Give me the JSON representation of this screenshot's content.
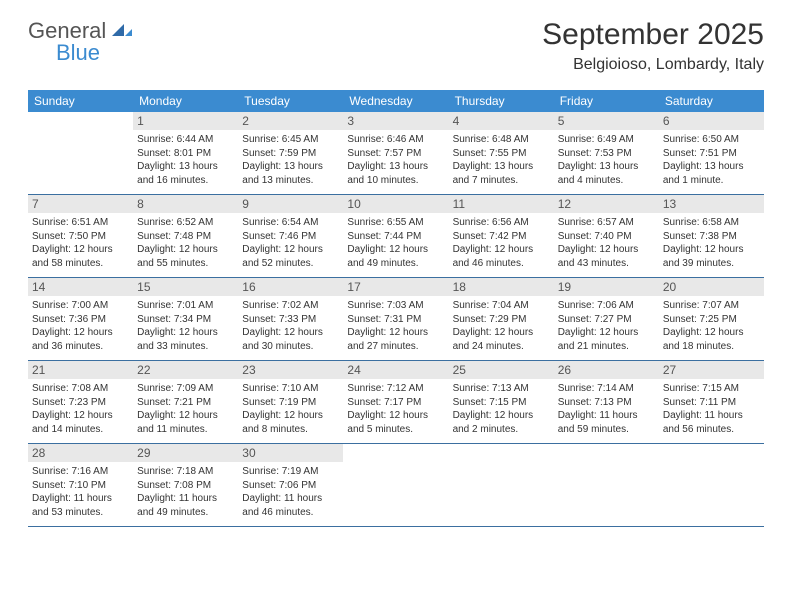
{
  "logo": {
    "part1": "General",
    "part2": "Blue"
  },
  "title": "September 2025",
  "location": "Belgioioso, Lombardy, Italy",
  "colors": {
    "header_bg": "#3b8bd0",
    "daynum_bg": "#e8e8e8",
    "week_border": "#3b6fa0",
    "logo_accent": "#3b8bd0",
    "text": "#333333"
  },
  "weekdays": [
    "Sunday",
    "Monday",
    "Tuesday",
    "Wednesday",
    "Thursday",
    "Friday",
    "Saturday"
  ],
  "weeks": [
    [
      null,
      {
        "num": "1",
        "sunrise": "Sunrise: 6:44 AM",
        "sunset": "Sunset: 8:01 PM",
        "day1": "Daylight: 13 hours",
        "day2": "and 16 minutes."
      },
      {
        "num": "2",
        "sunrise": "Sunrise: 6:45 AM",
        "sunset": "Sunset: 7:59 PM",
        "day1": "Daylight: 13 hours",
        "day2": "and 13 minutes."
      },
      {
        "num": "3",
        "sunrise": "Sunrise: 6:46 AM",
        "sunset": "Sunset: 7:57 PM",
        "day1": "Daylight: 13 hours",
        "day2": "and 10 minutes."
      },
      {
        "num": "4",
        "sunrise": "Sunrise: 6:48 AM",
        "sunset": "Sunset: 7:55 PM",
        "day1": "Daylight: 13 hours",
        "day2": "and 7 minutes."
      },
      {
        "num": "5",
        "sunrise": "Sunrise: 6:49 AM",
        "sunset": "Sunset: 7:53 PM",
        "day1": "Daylight: 13 hours",
        "day2": "and 4 minutes."
      },
      {
        "num": "6",
        "sunrise": "Sunrise: 6:50 AM",
        "sunset": "Sunset: 7:51 PM",
        "day1": "Daylight: 13 hours",
        "day2": "and 1 minute."
      }
    ],
    [
      {
        "num": "7",
        "sunrise": "Sunrise: 6:51 AM",
        "sunset": "Sunset: 7:50 PM",
        "day1": "Daylight: 12 hours",
        "day2": "and 58 minutes."
      },
      {
        "num": "8",
        "sunrise": "Sunrise: 6:52 AM",
        "sunset": "Sunset: 7:48 PM",
        "day1": "Daylight: 12 hours",
        "day2": "and 55 minutes."
      },
      {
        "num": "9",
        "sunrise": "Sunrise: 6:54 AM",
        "sunset": "Sunset: 7:46 PM",
        "day1": "Daylight: 12 hours",
        "day2": "and 52 minutes."
      },
      {
        "num": "10",
        "sunrise": "Sunrise: 6:55 AM",
        "sunset": "Sunset: 7:44 PM",
        "day1": "Daylight: 12 hours",
        "day2": "and 49 minutes."
      },
      {
        "num": "11",
        "sunrise": "Sunrise: 6:56 AM",
        "sunset": "Sunset: 7:42 PM",
        "day1": "Daylight: 12 hours",
        "day2": "and 46 minutes."
      },
      {
        "num": "12",
        "sunrise": "Sunrise: 6:57 AM",
        "sunset": "Sunset: 7:40 PM",
        "day1": "Daylight: 12 hours",
        "day2": "and 43 minutes."
      },
      {
        "num": "13",
        "sunrise": "Sunrise: 6:58 AM",
        "sunset": "Sunset: 7:38 PM",
        "day1": "Daylight: 12 hours",
        "day2": "and 39 minutes."
      }
    ],
    [
      {
        "num": "14",
        "sunrise": "Sunrise: 7:00 AM",
        "sunset": "Sunset: 7:36 PM",
        "day1": "Daylight: 12 hours",
        "day2": "and 36 minutes."
      },
      {
        "num": "15",
        "sunrise": "Sunrise: 7:01 AM",
        "sunset": "Sunset: 7:34 PM",
        "day1": "Daylight: 12 hours",
        "day2": "and 33 minutes."
      },
      {
        "num": "16",
        "sunrise": "Sunrise: 7:02 AM",
        "sunset": "Sunset: 7:33 PM",
        "day1": "Daylight: 12 hours",
        "day2": "and 30 minutes."
      },
      {
        "num": "17",
        "sunrise": "Sunrise: 7:03 AM",
        "sunset": "Sunset: 7:31 PM",
        "day1": "Daylight: 12 hours",
        "day2": "and 27 minutes."
      },
      {
        "num": "18",
        "sunrise": "Sunrise: 7:04 AM",
        "sunset": "Sunset: 7:29 PM",
        "day1": "Daylight: 12 hours",
        "day2": "and 24 minutes."
      },
      {
        "num": "19",
        "sunrise": "Sunrise: 7:06 AM",
        "sunset": "Sunset: 7:27 PM",
        "day1": "Daylight: 12 hours",
        "day2": "and 21 minutes."
      },
      {
        "num": "20",
        "sunrise": "Sunrise: 7:07 AM",
        "sunset": "Sunset: 7:25 PM",
        "day1": "Daylight: 12 hours",
        "day2": "and 18 minutes."
      }
    ],
    [
      {
        "num": "21",
        "sunrise": "Sunrise: 7:08 AM",
        "sunset": "Sunset: 7:23 PM",
        "day1": "Daylight: 12 hours",
        "day2": "and 14 minutes."
      },
      {
        "num": "22",
        "sunrise": "Sunrise: 7:09 AM",
        "sunset": "Sunset: 7:21 PM",
        "day1": "Daylight: 12 hours",
        "day2": "and 11 minutes."
      },
      {
        "num": "23",
        "sunrise": "Sunrise: 7:10 AM",
        "sunset": "Sunset: 7:19 PM",
        "day1": "Daylight: 12 hours",
        "day2": "and 8 minutes."
      },
      {
        "num": "24",
        "sunrise": "Sunrise: 7:12 AM",
        "sunset": "Sunset: 7:17 PM",
        "day1": "Daylight: 12 hours",
        "day2": "and 5 minutes."
      },
      {
        "num": "25",
        "sunrise": "Sunrise: 7:13 AM",
        "sunset": "Sunset: 7:15 PM",
        "day1": "Daylight: 12 hours",
        "day2": "and 2 minutes."
      },
      {
        "num": "26",
        "sunrise": "Sunrise: 7:14 AM",
        "sunset": "Sunset: 7:13 PM",
        "day1": "Daylight: 11 hours",
        "day2": "and 59 minutes."
      },
      {
        "num": "27",
        "sunrise": "Sunrise: 7:15 AM",
        "sunset": "Sunset: 7:11 PM",
        "day1": "Daylight: 11 hours",
        "day2": "and 56 minutes."
      }
    ],
    [
      {
        "num": "28",
        "sunrise": "Sunrise: 7:16 AM",
        "sunset": "Sunset: 7:10 PM",
        "day1": "Daylight: 11 hours",
        "day2": "and 53 minutes."
      },
      {
        "num": "29",
        "sunrise": "Sunrise: 7:18 AM",
        "sunset": "Sunset: 7:08 PM",
        "day1": "Daylight: 11 hours",
        "day2": "and 49 minutes."
      },
      {
        "num": "30",
        "sunrise": "Sunrise: 7:19 AM",
        "sunset": "Sunset: 7:06 PM",
        "day1": "Daylight: 11 hours",
        "day2": "and 46 minutes."
      },
      null,
      null,
      null,
      null
    ]
  ]
}
